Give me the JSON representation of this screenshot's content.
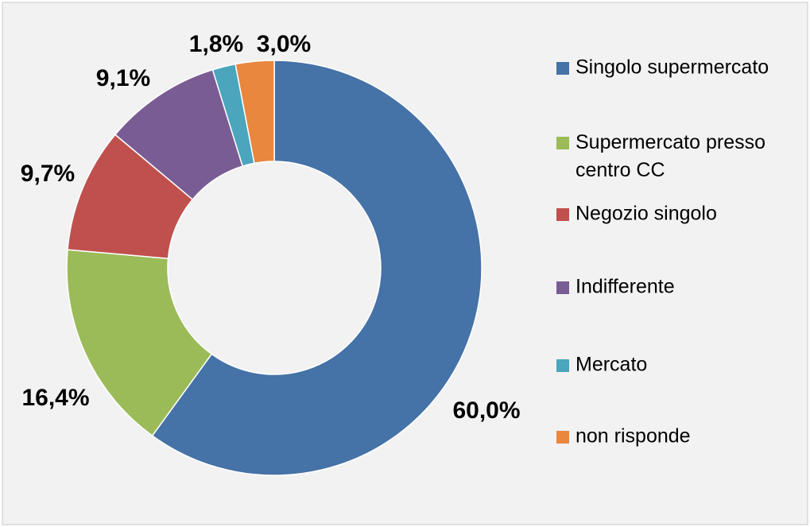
{
  "chart_data": {
    "type": "donut",
    "categories": [
      "Singolo supermercato",
      "Supermercato presso centro CC",
      "Negozio singolo",
      "Indifferente",
      "Mercato",
      "non risponde"
    ],
    "values": [
      60.0,
      16.4,
      9.7,
      9.1,
      1.8,
      3.0
    ],
    "value_labels": [
      "60,0%",
      "16,4%",
      "9,7%",
      "9,1%",
      "1,8%",
      "3,0%"
    ],
    "colors": [
      "#4572a7",
      "#9bbb59",
      "#c0504d",
      "#7a5c94",
      "#4aa5bd",
      "#e9873f"
    ],
    "legend": "right"
  }
}
